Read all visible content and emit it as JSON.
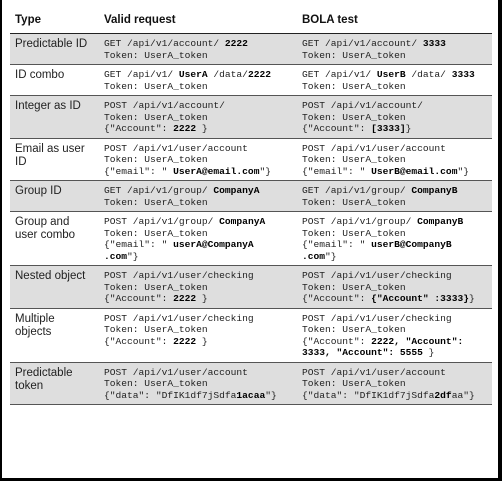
{
  "table": {
    "headers": {
      "type": "Type",
      "valid": "Valid request",
      "bola": "BOLA test"
    },
    "rows": [
      {
        "type": "Predictable ID",
        "shade": true,
        "valid": [
          [
            {
              "t": "GET /api/v1/account/ "
            },
            {
              "t": "2222",
              "b": true
            }
          ],
          [
            {
              "t": "Token: UserA_token"
            }
          ]
        ],
        "bola": [
          [
            {
              "t": "GET /api/v1/account/ "
            },
            {
              "t": "3333",
              "b": true
            }
          ],
          [
            {
              "t": "Token: UserA_token"
            }
          ]
        ]
      },
      {
        "type": "ID combo",
        "shade": false,
        "valid": [
          [
            {
              "t": "GET /api/v1/ "
            },
            {
              "t": "UserA",
              "b": true
            },
            {
              "t": " /data/"
            },
            {
              "t": "2222",
              "b": true
            }
          ],
          [
            {
              "t": "Token: UserA_token"
            }
          ]
        ],
        "bola": [
          [
            {
              "t": "GET /api/v1/ "
            },
            {
              "t": "UserB",
              "b": true
            },
            {
              "t": " /data/ "
            },
            {
              "t": "3333",
              "b": true
            }
          ],
          [
            {
              "t": "Token: UserA_token"
            }
          ]
        ]
      },
      {
        "type": "Integer as ID",
        "shade": true,
        "valid": [
          [
            {
              "t": "POST /api/v1/account/"
            }
          ],
          [
            {
              "t": "Token: UserA_token"
            }
          ],
          [
            {
              "t": "{\"Account\": "
            },
            {
              "t": "2222",
              "b": true
            },
            {
              "t": " }"
            }
          ]
        ],
        "bola": [
          [
            {
              "t": "POST /api/v1/account/"
            }
          ],
          [
            {
              "t": "Token: UserA_token"
            }
          ],
          [
            {
              "t": "{\"Account\": "
            },
            {
              "t": "[3333]",
              "b": true
            },
            {
              "t": "}"
            }
          ]
        ]
      },
      {
        "type": "Email as user ID",
        "shade": false,
        "valid": [
          [
            {
              "t": "POST /api/v1/user/account"
            }
          ],
          [
            {
              "t": "Token: UserA_token"
            }
          ],
          [
            {
              "t": "{\"email\": \" "
            },
            {
              "t": "UserA@email.com",
              "b": true
            },
            {
              "t": "\"}"
            }
          ]
        ],
        "bola": [
          [
            {
              "t": "POST /api/v1/user/account"
            }
          ],
          [
            {
              "t": "Token: UserA_token"
            }
          ],
          [
            {
              "t": "{\"email\": \" "
            },
            {
              "t": "UserB@email.com",
              "b": true
            },
            {
              "t": "\"}"
            }
          ]
        ]
      },
      {
        "type": "Group ID",
        "shade": true,
        "valid": [
          [
            {
              "t": "GET /api/v1/group/ "
            },
            {
              "t": "CompanyA",
              "b": true
            }
          ],
          [
            {
              "t": "Token: UserA_token"
            }
          ]
        ],
        "bola": [
          [
            {
              "t": "GET /api/v1/group/ "
            },
            {
              "t": "CompanyB",
              "b": true
            }
          ],
          [
            {
              "t": "Token: UserA_token"
            }
          ]
        ]
      },
      {
        "type": "Group and user combo",
        "shade": false,
        "valid": [
          [
            {
              "t": "POST /api/v1/group/ "
            },
            {
              "t": "CompanyA",
              "b": true
            }
          ],
          [
            {
              "t": "Token: UserA_token"
            }
          ],
          [
            {
              "t": "{\"email\": \" "
            },
            {
              "t": "userA@CompanyA",
              "b": true
            }
          ],
          [
            {
              "t": ".com",
              "b": true
            },
            {
              "t": "\"}"
            }
          ]
        ],
        "bola": [
          [
            {
              "t": "POST /api/v1/group/ "
            },
            {
              "t": "CompanyB",
              "b": true
            }
          ],
          [
            {
              "t": "Token: UserA_token"
            }
          ],
          [
            {
              "t": "{\"email\": \" "
            },
            {
              "t": "userB@CompanyB",
              "b": true
            }
          ],
          [
            {
              "t": ".com",
              "b": true
            },
            {
              "t": "\"}"
            }
          ]
        ]
      },
      {
        "type": "Nested object",
        "shade": true,
        "valid": [
          [
            {
              "t": "POST /api/v1/user/checking"
            }
          ],
          [
            {
              "t": "Token: UserA_token"
            }
          ],
          [
            {
              "t": "{\"Account\": "
            },
            {
              "t": "2222",
              "b": true
            },
            {
              "t": " }"
            }
          ]
        ],
        "bola": [
          [
            {
              "t": "POST /api/v1/user/checking"
            }
          ],
          [
            {
              "t": "Token: UserA_token"
            }
          ],
          [
            {
              "t": "{\"Account\": "
            },
            {
              "t": "{\"Account\" :3333}",
              "b": true
            },
            {
              "t": "}"
            }
          ]
        ]
      },
      {
        "type": "Multiple objects",
        "shade": false,
        "valid": [
          [
            {
              "t": "POST /api/v1/user/checking"
            }
          ],
          [
            {
              "t": "Token: UserA_token"
            }
          ],
          [
            {
              "t": "{\"Account\": "
            },
            {
              "t": "2222",
              "b": true
            },
            {
              "t": " }"
            }
          ]
        ],
        "bola": [
          [
            {
              "t": "POST /api/v1/user/checking"
            }
          ],
          [
            {
              "t": "Token: UserA_token"
            }
          ],
          [
            {
              "t": "{\"Account\": "
            },
            {
              "t": "2222, \"Account\":",
              "b": true
            }
          ],
          [
            {
              "t": "3333, \"Account\": 5555",
              "b": true
            },
            {
              "t": " }"
            }
          ]
        ]
      },
      {
        "type": "Predictable token",
        "shade": true,
        "valid": [
          [
            {
              "t": "POST /api/v1/user/account"
            }
          ],
          [
            {
              "t": "Token: UserA_token"
            }
          ],
          [
            {
              "t": "{\"data\": \"DfIK1df7jSdfa"
            },
            {
              "t": "1acaa",
              "b": true
            },
            {
              "t": "\"}"
            }
          ]
        ],
        "bola": [
          [
            {
              "t": "POST /api/v1/user/account"
            }
          ],
          [
            {
              "t": "Token: UserA_token"
            }
          ],
          [
            {
              "t": "{\"data\": \"DfIK1df7jSdfa"
            },
            {
              "t": "2df",
              "b": true
            },
            {
              "t": "aa\"}"
            }
          ]
        ]
      }
    ]
  }
}
